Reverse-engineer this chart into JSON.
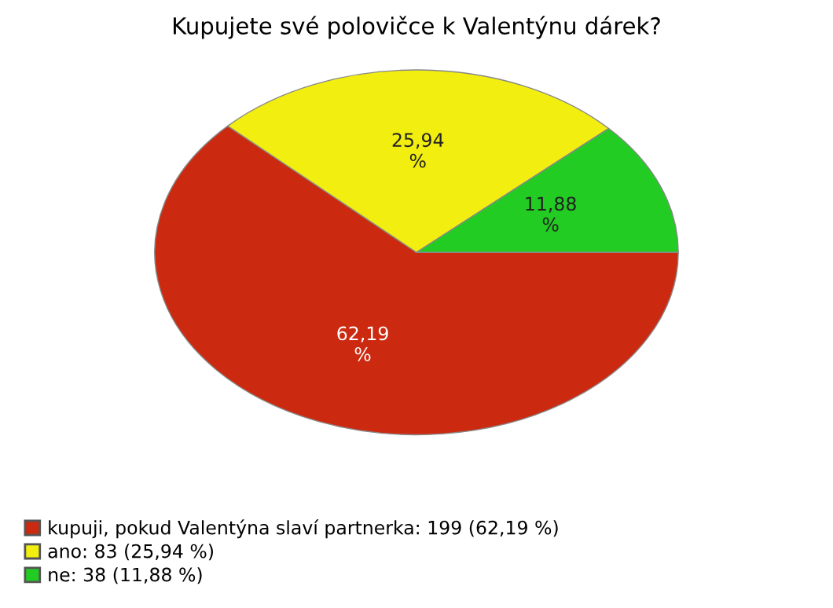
{
  "chart_data": {
    "type": "pie",
    "title": "Kupujete své polovičce k Valentýnu dárek?",
    "categories": [
      "kupuji, pokud Valentýna slaví partnerka: 199 (62,19 %)",
      "ano: 83 (25,94 %)",
      "ne: 38 (11,88 %)"
    ],
    "values": [
      62.19,
      25.94,
      11.88
    ],
    "value_labels": [
      "62,19 %",
      "25,94 %",
      "11,88 %"
    ],
    "colors": [
      "#cc2a10",
      "#f2ee10",
      "#22cc22"
    ],
    "legend": "bottom left"
  }
}
